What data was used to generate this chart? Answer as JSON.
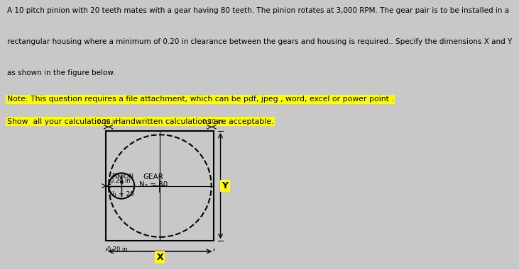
{
  "page_bg": "#c8c8c8",
  "fig_bg": "#d4c87a",
  "title_text1": "A 10 pitch pinion with 20 teeth mates with a gear having 80 teeth. The pinion rotates at 3,000 RPM. The gear pair is to be installed in a",
  "title_text2": "rectangular housing where a minimum of 0.20 in clearance between the gears and housing is required.. Specify the dimensions X and Y",
  "title_text3": "as shown in the figure below.",
  "note_text": "Note: This question requires a file attachment, which can be pdf, jpeg , word, excel or power point .",
  "note2_text": "Show  all your calculations. Handwritten calculations are acceptable.",
  "clearance_label": "0.20 in",
  "gear_label": "GEAR",
  "gear_N_label": "N₉ = 80",
  "pinion_label": "PINION",
  "pinion_N_label": "N₁ = 20",
  "X_label": "X",
  "Y_label": "Y",
  "text_fontsize": 7.5,
  "note_fontsize": 7.8,
  "dim_fontsize": 6.0
}
